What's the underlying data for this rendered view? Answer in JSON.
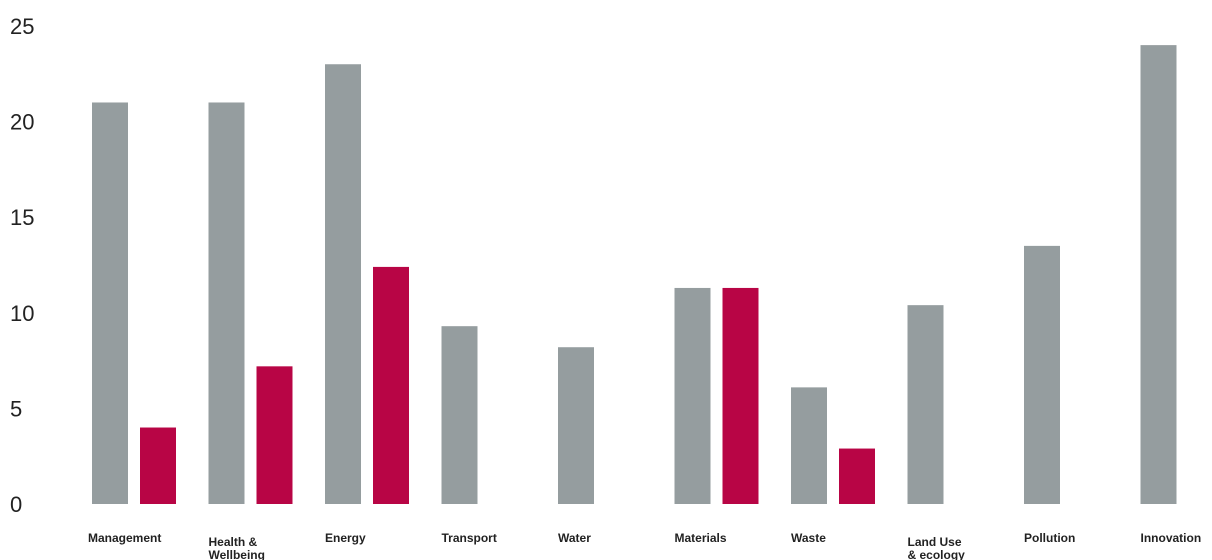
{
  "chart_data": {
    "type": "bar",
    "categories": [
      [
        "Management"
      ],
      [
        "Health &",
        "Wellbeing"
      ],
      [
        "Energy"
      ],
      [
        "Transport"
      ],
      [
        "Water"
      ],
      [
        "Materials"
      ],
      [
        "Waste"
      ],
      [
        "Land Use",
        "& ecology"
      ],
      [
        "Pollution"
      ],
      [
        "Innovation"
      ]
    ],
    "series": [
      {
        "values": [
          21,
          21,
          23,
          9.3,
          8.2,
          11.3,
          6.1,
          10.4,
          13.5,
          24
        ],
        "color": "#959d9f"
      },
      {
        "values": [
          4,
          7.2,
          12.4,
          0,
          0,
          11.3,
          2.9,
          0,
          0,
          0
        ],
        "color": "#b80545"
      }
    ],
    "yticks": [
      "0",
      "5",
      "10",
      "15",
      "20",
      "25"
    ],
    "ylim": [
      0,
      25
    ],
    "grid": false,
    "title": "",
    "xlabel": "",
    "ylabel": ""
  }
}
